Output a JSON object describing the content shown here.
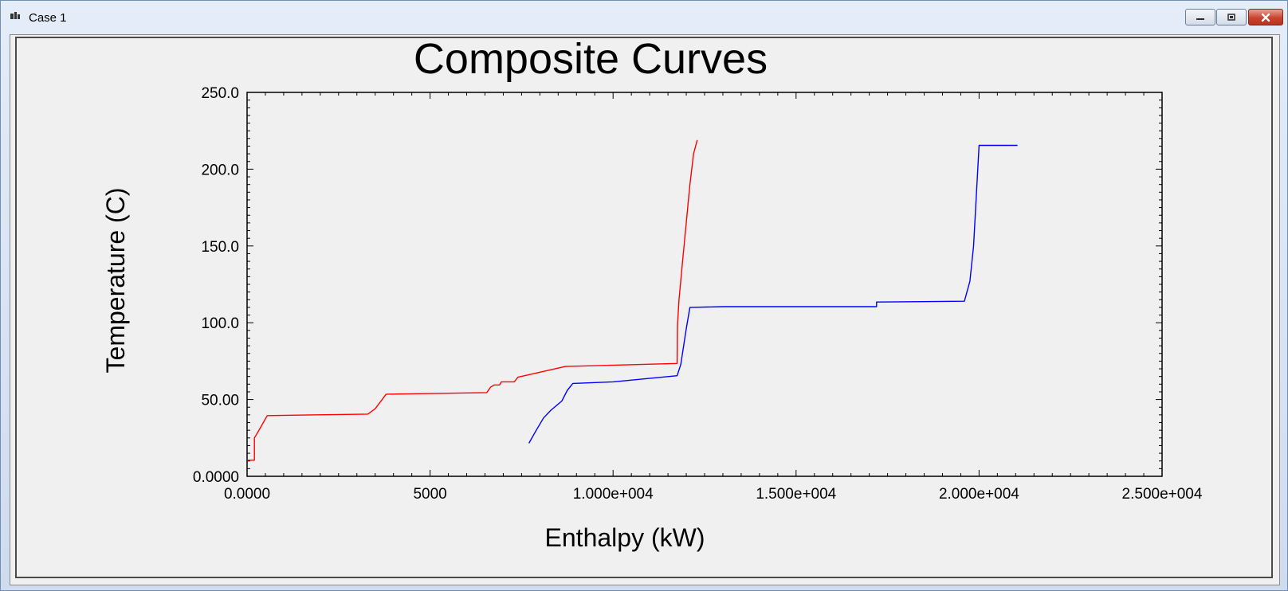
{
  "window": {
    "title": "Case 1",
    "icons": [
      "app-icon",
      "minimize-icon",
      "maximize-icon",
      "close-icon"
    ]
  },
  "chart_data": {
    "type": "line",
    "title": "Composite Curves",
    "xlabel": "Enthalpy (kW)",
    "ylabel": "Temperature (C)",
    "xlim": [
      0,
      25000
    ],
    "ylim": [
      0,
      250
    ],
    "x_ticks": [
      {
        "value": 0,
        "label": "0.0000"
      },
      {
        "value": 5000,
        "label": "5000"
      },
      {
        "value": 10000,
        "label": "1.000e+004"
      },
      {
        "value": 15000,
        "label": "1.500e+004"
      },
      {
        "value": 20000,
        "label": "2.000e+004"
      },
      {
        "value": 25000,
        "label": "2.500e+004"
      }
    ],
    "y_ticks": [
      {
        "value": 0,
        "label": "0.0000"
      },
      {
        "value": 50,
        "label": "50.00"
      },
      {
        "value": 100,
        "label": "100.0"
      },
      {
        "value": 150,
        "label": "150.0"
      },
      {
        "value": 200,
        "label": "200.0"
      },
      {
        "value": 250,
        "label": "250.0"
      }
    ],
    "grid": false,
    "series": [
      {
        "color": "#ff0000",
        "x": [
          0,
          200,
          200,
          300,
          550,
          3300,
          3500,
          3800,
          6550,
          6650,
          6750,
          6900,
          6950,
          7300,
          7350,
          7400,
          8700,
          11750,
          11760,
          11800,
          11900,
          12000,
          12100,
          12200,
          12300
        ],
        "y": [
          10.5,
          10.5,
          25,
          29,
          39.5,
          40.5,
          44,
          53.5,
          54.5,
          58,
          59.5,
          59.5,
          61.5,
          61.5,
          63,
          64.5,
          71.5,
          73.5,
          98,
          115,
          140,
          165,
          190,
          210,
          219
        ]
      },
      {
        "color": "#0000ff",
        "x": [
          7700,
          7900,
          8100,
          8300,
          8600,
          8750,
          8900,
          10000,
          11750,
          11850,
          12000,
          12100,
          13000,
          17200,
          17200,
          19600,
          19750,
          19850,
          20000,
          21050
        ],
        "y": [
          21.5,
          30,
          38,
          43,
          49,
          56,
          60.5,
          61.5,
          65.5,
          73,
          96,
          110,
          110.5,
          110.5,
          113.5,
          114,
          127,
          150,
          215.5,
          215.5
        ]
      }
    ]
  }
}
